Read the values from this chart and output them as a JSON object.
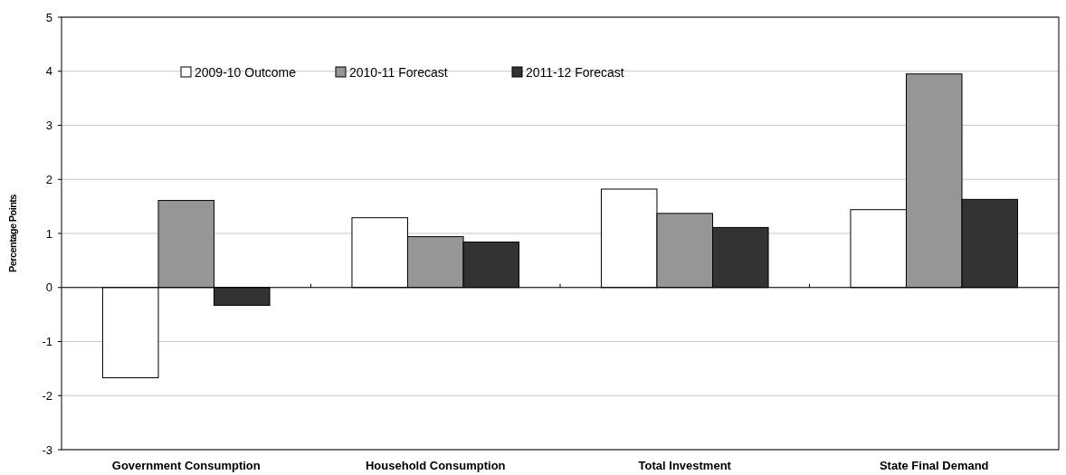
{
  "chart_data": {
    "type": "bar",
    "ylabel": "Percentage Points",
    "categories": [
      "Government Consumption",
      "Household Consumption",
      "Total Investment",
      "State Final Demand"
    ],
    "series": [
      {
        "name": "2009-10 Outcome",
        "color": "#ffffff",
        "values": [
          -1.67,
          1.29,
          1.82,
          1.44
        ]
      },
      {
        "name": "2010-11 Forecast",
        "color": "#969696",
        "values": [
          1.61,
          0.94,
          1.37,
          3.95
        ]
      },
      {
        "name": "2011-12 Forecast",
        "color": "#333333",
        "values": [
          -0.33,
          0.84,
          1.11,
          1.63
        ]
      }
    ],
    "ylim": [
      -3,
      5
    ],
    "yticks": [
      -3,
      -2,
      -1,
      0,
      1,
      2,
      3,
      4,
      5
    ],
    "grid": "y",
    "legend": "top left"
  }
}
